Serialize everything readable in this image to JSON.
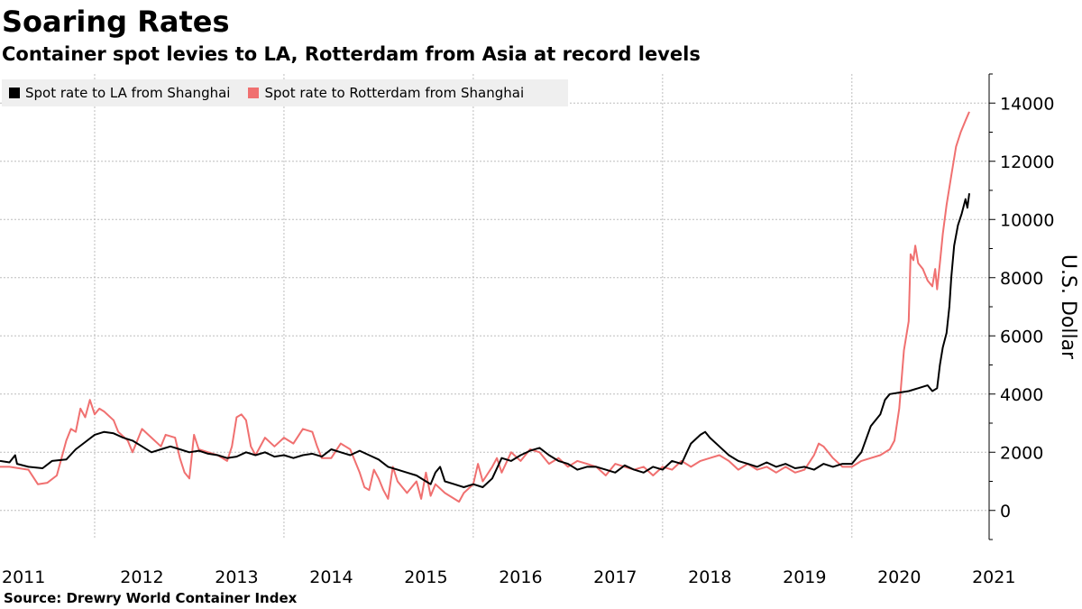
{
  "chart_data": {
    "type": "line",
    "title": "Soaring Rates",
    "subtitle": "Container spot levies to LA, Rotterdam from Asia at record levels",
    "ylabel": "U.S. Dollar",
    "source": "Source: Drewry World Container Index",
    "ylim": [
      -1000,
      15000
    ],
    "xlim": [
      2011.0,
      2021.45
    ],
    "yticks": [
      "0",
      "2000",
      "4000",
      "6000",
      "8000",
      "10000",
      "12000",
      "14000"
    ],
    "xticks": [
      "2011",
      "2012",
      "2013",
      "2014",
      "2015",
      "2016",
      "2017",
      "2018",
      "2019",
      "2020",
      "2021"
    ],
    "grid": true,
    "legend_position": "top-left",
    "series": [
      {
        "name": "Spot rate to LA from Shanghai",
        "color": "#000000",
        "points": [
          [
            2011.0,
            1700
          ],
          [
            2011.1,
            1650
          ],
          [
            2011.16,
            1900
          ],
          [
            2011.18,
            1600
          ],
          [
            2011.3,
            1500
          ],
          [
            2011.45,
            1450
          ],
          [
            2011.55,
            1700
          ],
          [
            2011.7,
            1750
          ],
          [
            2011.8,
            2100
          ],
          [
            2011.9,
            2350
          ],
          [
            2012.0,
            2600
          ],
          [
            2012.1,
            2700
          ],
          [
            2012.2,
            2650
          ],
          [
            2012.3,
            2500
          ],
          [
            2012.4,
            2400
          ],
          [
            2012.5,
            2200
          ],
          [
            2012.6,
            2000
          ],
          [
            2012.7,
            2100
          ],
          [
            2012.8,
            2200
          ],
          [
            2012.9,
            2100
          ],
          [
            2013.0,
            2000
          ],
          [
            2013.1,
            2050
          ],
          [
            2013.2,
            1950
          ],
          [
            2013.3,
            1900
          ],
          [
            2013.4,
            1800
          ],
          [
            2013.5,
            1850
          ],
          [
            2013.6,
            2000
          ],
          [
            2013.7,
            1900
          ],
          [
            2013.8,
            2000
          ],
          [
            2013.9,
            1850
          ],
          [
            2014.0,
            1900
          ],
          [
            2014.1,
            1800
          ],
          [
            2014.2,
            1900
          ],
          [
            2014.3,
            1950
          ],
          [
            2014.4,
            1850
          ],
          [
            2014.5,
            2100
          ],
          [
            2014.6,
            2000
          ],
          [
            2014.7,
            1900
          ],
          [
            2014.8,
            2050
          ],
          [
            2014.9,
            1900
          ],
          [
            2015.0,
            1750
          ],
          [
            2015.1,
            1500
          ],
          [
            2015.2,
            1400
          ],
          [
            2015.3,
            1300
          ],
          [
            2015.4,
            1200
          ],
          [
            2015.5,
            1000
          ],
          [
            2015.55,
            900
          ],
          [
            2015.6,
            1300
          ],
          [
            2015.65,
            1500
          ],
          [
            2015.7,
            1000
          ],
          [
            2015.8,
            900
          ],
          [
            2015.9,
            800
          ],
          [
            2016.0,
            900
          ],
          [
            2016.1,
            800
          ],
          [
            2016.2,
            1100
          ],
          [
            2016.3,
            1800
          ],
          [
            2016.4,
            1700
          ],
          [
            2016.5,
            1900
          ],
          [
            2016.6,
            2050
          ],
          [
            2016.7,
            2150
          ],
          [
            2016.8,
            1900
          ],
          [
            2016.9,
            1700
          ],
          [
            2017.0,
            1600
          ],
          [
            2017.1,
            1400
          ],
          [
            2017.2,
            1500
          ],
          [
            2017.3,
            1500
          ],
          [
            2017.4,
            1400
          ],
          [
            2017.5,
            1300
          ],
          [
            2017.6,
            1550
          ],
          [
            2017.7,
            1400
          ],
          [
            2017.8,
            1300
          ],
          [
            2017.9,
            1500
          ],
          [
            2018.0,
            1400
          ],
          [
            2018.1,
            1700
          ],
          [
            2018.2,
            1600
          ],
          [
            2018.3,
            2300
          ],
          [
            2018.4,
            2600
          ],
          [
            2018.45,
            2700
          ],
          [
            2018.5,
            2500
          ],
          [
            2018.6,
            2200
          ],
          [
            2018.7,
            1900
          ],
          [
            2018.8,
            1700
          ],
          [
            2018.9,
            1600
          ],
          [
            2019.0,
            1500
          ],
          [
            2019.1,
            1650
          ],
          [
            2019.2,
            1500
          ],
          [
            2019.3,
            1600
          ],
          [
            2019.4,
            1450
          ],
          [
            2019.5,
            1500
          ],
          [
            2019.6,
            1400
          ],
          [
            2019.7,
            1600
          ],
          [
            2019.8,
            1500
          ],
          [
            2019.9,
            1600
          ],
          [
            2020.0,
            1600
          ],
          [
            2020.05,
            1800
          ],
          [
            2020.1,
            2000
          ],
          [
            2020.2,
            2900
          ],
          [
            2020.3,
            3300
          ],
          [
            2020.35,
            3800
          ],
          [
            2020.4,
            4000
          ],
          [
            2020.5,
            4050
          ],
          [
            2020.6,
            4100
          ],
          [
            2020.7,
            4200
          ],
          [
            2020.75,
            4250
          ],
          [
            2020.8,
            4300
          ],
          [
            2020.85,
            4100
          ],
          [
            2020.9,
            4200
          ],
          [
            2020.93,
            5000
          ],
          [
            2020.96,
            5600
          ],
          [
            2021.0,
            6100
          ],
          [
            2021.03,
            7000
          ],
          [
            2021.05,
            8000
          ],
          [
            2021.08,
            9100
          ],
          [
            2021.12,
            9800
          ],
          [
            2021.16,
            10200
          ],
          [
            2021.2,
            10700
          ],
          [
            2021.22,
            10400
          ],
          [
            2021.24,
            10900
          ]
        ]
      },
      {
        "name": "Spot rate to Rotterdam from Shanghai",
        "color": "#f07070",
        "points": [
          [
            2011.0,
            1500
          ],
          [
            2011.1,
            1500
          ],
          [
            2011.2,
            1450
          ],
          [
            2011.3,
            1400
          ],
          [
            2011.4,
            900
          ],
          [
            2011.5,
            950
          ],
          [
            2011.6,
            1200
          ],
          [
            2011.7,
            2400
          ],
          [
            2011.75,
            2800
          ],
          [
            2011.8,
            2700
          ],
          [
            2011.85,
            3500
          ],
          [
            2011.9,
            3200
          ],
          [
            2011.95,
            3800
          ],
          [
            2012.0,
            3300
          ],
          [
            2012.05,
            3500
          ],
          [
            2012.1,
            3400
          ],
          [
            2012.2,
            3100
          ],
          [
            2012.25,
            2700
          ],
          [
            2012.35,
            2400
          ],
          [
            2012.4,
            2000
          ],
          [
            2012.5,
            2800
          ],
          [
            2012.6,
            2500
          ],
          [
            2012.7,
            2200
          ],
          [
            2012.75,
            2600
          ],
          [
            2012.85,
            2500
          ],
          [
            2012.9,
            1800
          ],
          [
            2012.95,
            1300
          ],
          [
            2013.0,
            1100
          ],
          [
            2013.05,
            2600
          ],
          [
            2013.1,
            2100
          ],
          [
            2013.2,
            2000
          ],
          [
            2013.3,
            1900
          ],
          [
            2013.4,
            1700
          ],
          [
            2013.45,
            2200
          ],
          [
            2013.5,
            3200
          ],
          [
            2013.55,
            3300
          ],
          [
            2013.6,
            3100
          ],
          [
            2013.65,
            2200
          ],
          [
            2013.7,
            1900
          ],
          [
            2013.8,
            2500
          ],
          [
            2013.9,
            2200
          ],
          [
            2014.0,
            2500
          ],
          [
            2014.1,
            2300
          ],
          [
            2014.2,
            2800
          ],
          [
            2014.3,
            2700
          ],
          [
            2014.35,
            2200
          ],
          [
            2014.4,
            1800
          ],
          [
            2014.5,
            1800
          ],
          [
            2014.6,
            2300
          ],
          [
            2014.7,
            2100
          ],
          [
            2014.8,
            1300
          ],
          [
            2014.85,
            800
          ],
          [
            2014.9,
            700
          ],
          [
            2014.95,
            1400
          ],
          [
            2015.0,
            1100
          ],
          [
            2015.05,
            700
          ],
          [
            2015.1,
            400
          ],
          [
            2015.15,
            1500
          ],
          [
            2015.2,
            1000
          ],
          [
            2015.3,
            600
          ],
          [
            2015.4,
            1000
          ],
          [
            2015.45,
            400
          ],
          [
            2015.5,
            1300
          ],
          [
            2015.55,
            500
          ],
          [
            2015.6,
            900
          ],
          [
            2015.7,
            600
          ],
          [
            2015.8,
            400
          ],
          [
            2015.85,
            300
          ],
          [
            2015.9,
            600
          ],
          [
            2016.0,
            900
          ],
          [
            2016.05,
            1600
          ],
          [
            2016.1,
            1000
          ],
          [
            2016.2,
            1500
          ],
          [
            2016.25,
            1800
          ],
          [
            2016.3,
            1300
          ],
          [
            2016.4,
            2000
          ],
          [
            2016.5,
            1700
          ],
          [
            2016.6,
            2100
          ],
          [
            2016.7,
            2000
          ],
          [
            2016.8,
            1600
          ],
          [
            2016.9,
            1800
          ],
          [
            2017.0,
            1500
          ],
          [
            2017.1,
            1700
          ],
          [
            2017.2,
            1600
          ],
          [
            2017.3,
            1500
          ],
          [
            2017.4,
            1200
          ],
          [
            2017.5,
            1600
          ],
          [
            2017.6,
            1500
          ],
          [
            2017.7,
            1400
          ],
          [
            2017.8,
            1500
          ],
          [
            2017.9,
            1200
          ],
          [
            2018.0,
            1500
          ],
          [
            2018.1,
            1400
          ],
          [
            2018.2,
            1700
          ],
          [
            2018.3,
            1500
          ],
          [
            2018.4,
            1700
          ],
          [
            2018.5,
            1800
          ],
          [
            2018.6,
            1900
          ],
          [
            2018.7,
            1700
          ],
          [
            2018.8,
            1400
          ],
          [
            2018.9,
            1600
          ],
          [
            2019.0,
            1400
          ],
          [
            2019.1,
            1500
          ],
          [
            2019.2,
            1300
          ],
          [
            2019.3,
            1500
          ],
          [
            2019.4,
            1300
          ],
          [
            2019.5,
            1400
          ],
          [
            2019.6,
            1900
          ],
          [
            2019.65,
            2300
          ],
          [
            2019.7,
            2200
          ],
          [
            2019.8,
            1800
          ],
          [
            2019.9,
            1500
          ],
          [
            2020.0,
            1500
          ],
          [
            2020.1,
            1700
          ],
          [
            2020.2,
            1800
          ],
          [
            2020.3,
            1900
          ],
          [
            2020.4,
            2100
          ],
          [
            2020.45,
            2400
          ],
          [
            2020.5,
            3500
          ],
          [
            2020.55,
            5500
          ],
          [
            2020.6,
            6500
          ],
          [
            2020.62,
            8800
          ],
          [
            2020.65,
            8600
          ],
          [
            2020.67,
            9100
          ],
          [
            2020.7,
            8500
          ],
          [
            2020.75,
            8300
          ],
          [
            2020.8,
            7900
          ],
          [
            2020.85,
            7700
          ],
          [
            2020.88,
            8300
          ],
          [
            2020.9,
            7600
          ],
          [
            2020.93,
            8500
          ],
          [
            2020.96,
            9500
          ],
          [
            2021.0,
            10500
          ],
          [
            2021.05,
            11500
          ],
          [
            2021.1,
            12500
          ],
          [
            2021.15,
            13000
          ],
          [
            2021.2,
            13400
          ],
          [
            2021.24,
            13700
          ]
        ]
      }
    ]
  }
}
